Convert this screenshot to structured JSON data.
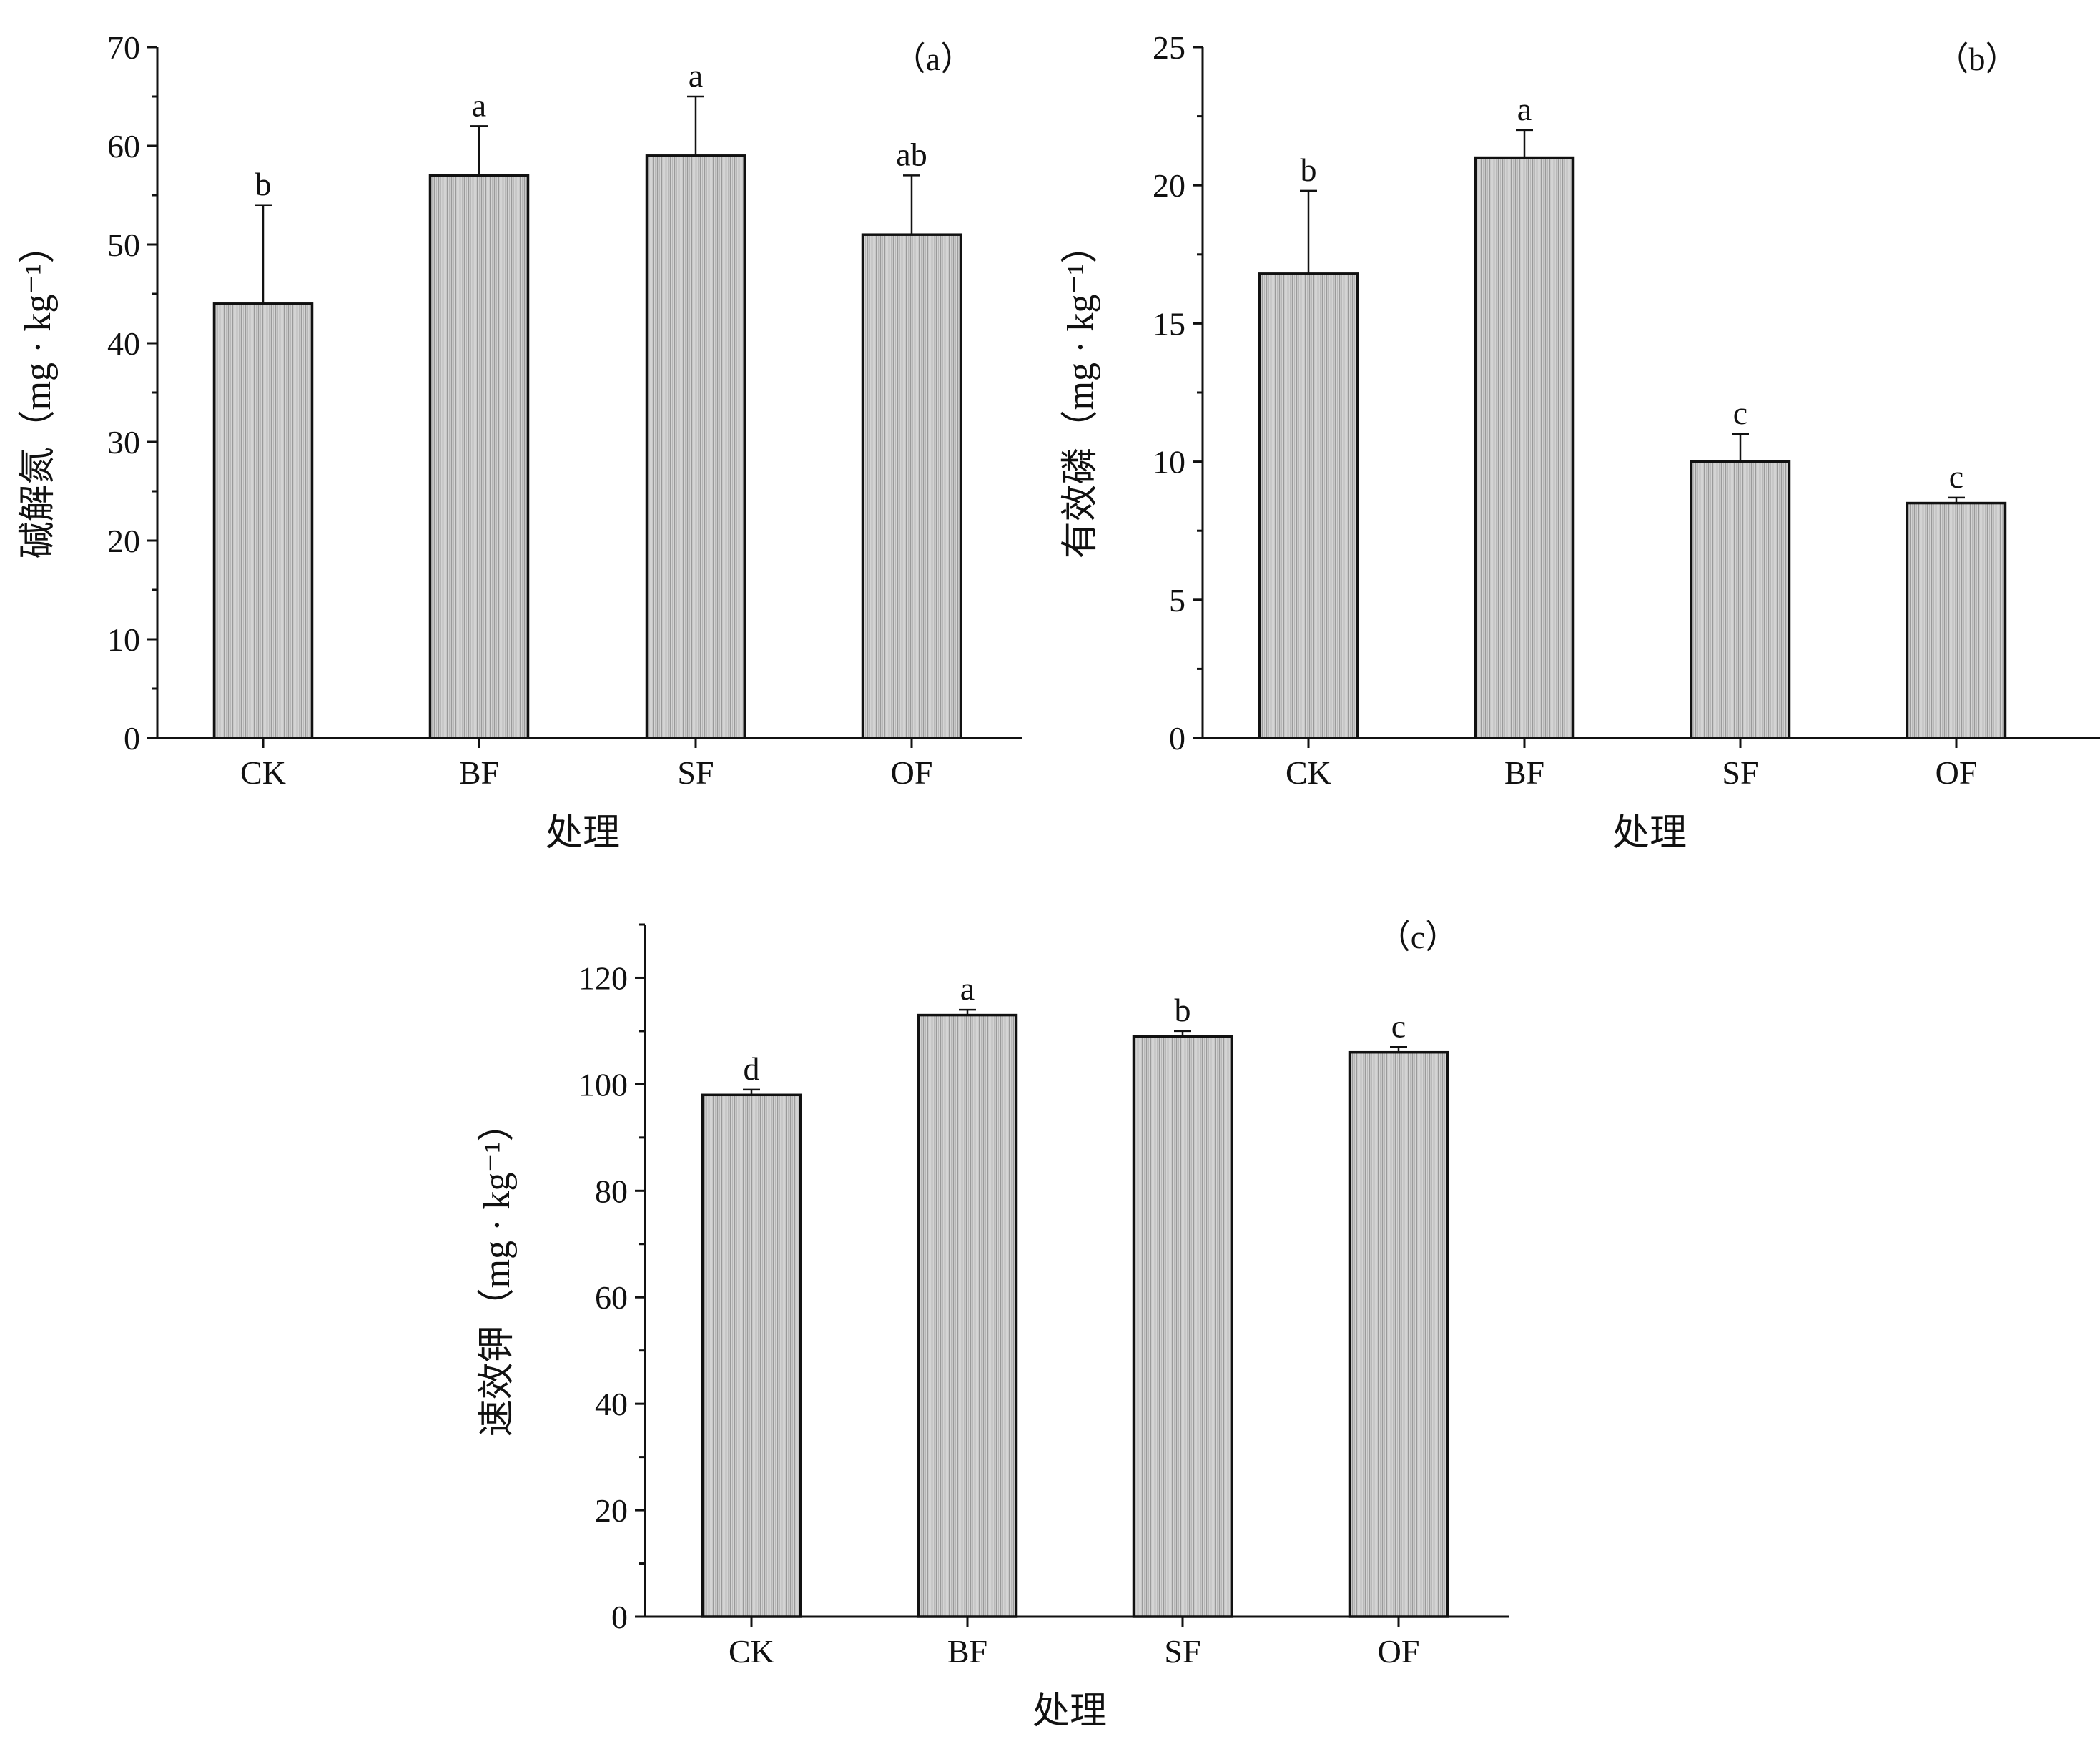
{
  "chart_data": [
    {
      "type": "bar",
      "panel": "（a）",
      "categories": [
        "CK",
        "BF",
        "SF",
        "OF"
      ],
      "values": [
        44,
        57,
        59,
        51
      ],
      "errors": [
        10,
        5,
        6,
        6
      ],
      "significance": [
        "b",
        "a",
        "a",
        "ab"
      ],
      "xlabel": "处理",
      "ylabel": "碱解氮（mg · kg⁻¹）",
      "ylim": [
        0,
        70
      ],
      "yticks": [
        0,
        10,
        20,
        30,
        40,
        50,
        60,
        70
      ],
      "grid": false
    },
    {
      "type": "bar",
      "panel": "（b）",
      "categories": [
        "CK",
        "BF",
        "SF",
        "OF"
      ],
      "values": [
        16.8,
        21,
        10,
        8.5
      ],
      "errors": [
        3,
        1,
        1,
        0.2
      ],
      "significance": [
        "b",
        "a",
        "c",
        "c"
      ],
      "xlabel": "处理",
      "ylabel": "有效磷（mg · kg⁻¹）",
      "ylim": [
        0,
        25
      ],
      "yticks": [
        0,
        5,
        10,
        15,
        20,
        25
      ],
      "grid": false
    },
    {
      "type": "bar",
      "panel": "（c）",
      "categories": [
        "CK",
        "BF",
        "SF",
        "OF"
      ],
      "values": [
        98,
        113,
        109,
        106
      ],
      "errors": [
        1,
        1,
        1,
        1
      ],
      "significance": [
        "d",
        "a",
        "b",
        "c"
      ],
      "xlabel": "处理",
      "ylabel": "速效钾（mg · kg⁻¹）",
      "ylim": [
        0,
        130
      ],
      "yticks": [
        0,
        20,
        40,
        60,
        80,
        100,
        120
      ],
      "grid": false
    }
  ],
  "colors": {
    "bar_fill": "#d4d4d4",
    "bar_stripe": "#9a9a9a",
    "ink": "#111111"
  }
}
